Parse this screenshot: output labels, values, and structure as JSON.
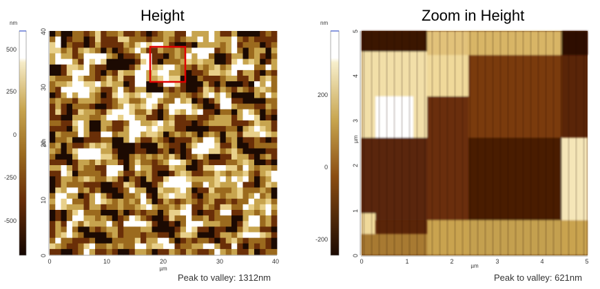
{
  "left_panel": {
    "title": "Height",
    "colorbar": {
      "unit": "nm",
      "ticks": [
        "500",
        "250",
        "0",
        "-250",
        "-500"
      ]
    },
    "y_axis": {
      "label": "µm",
      "ticks": [
        "0",
        "10",
        "20",
        "30",
        "40"
      ]
    },
    "x_axis": {
      "label": "µm",
      "ticks": [
        "0",
        "10",
        "20",
        "30",
        "40"
      ]
    },
    "caption": "Peak to valley: 1312nm"
  },
  "right_panel": {
    "title": "Zoom in Height",
    "colorbar": {
      "unit": "nm",
      "ticks": [
        "200",
        "0",
        "-200"
      ]
    },
    "y_axis": {
      "label": "µm",
      "ticks": [
        "0",
        "1",
        "2",
        "3",
        "4",
        "5"
      ]
    },
    "x_axis": {
      "label": "µm",
      "ticks": [
        "0",
        "1",
        "2",
        "3",
        "4",
        "5"
      ]
    },
    "caption": "Peak to valley: 621nm"
  },
  "colors": {
    "dark": "#1c0a02",
    "brown": "#6a2f08",
    "mid": "#9b6a1e",
    "gold": "#c7a44e",
    "light": "#ffffff",
    "selection_box": "#e00000"
  }
}
